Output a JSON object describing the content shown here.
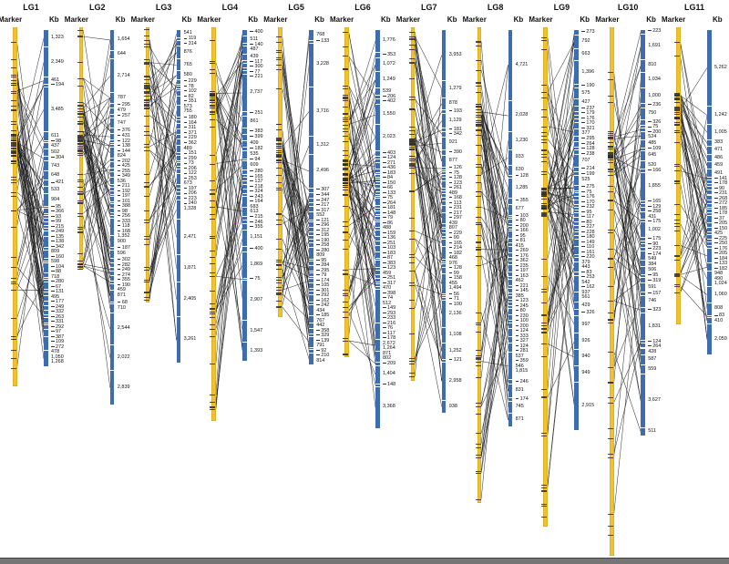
{
  "chart_data": {
    "type": "linkage-map",
    "description": "Genetic linkage map of 11 linkage groups; each group shows a yellow genetic marker bar (Marker) linked by lines to blue physical scaffold segments labeled with sizes in Kb.",
    "labels": {
      "marker": "Marker",
      "kb": "Kb"
    },
    "colors": {
      "marker_bar": "#F2C12E",
      "kb_bar": "#3D6CB1",
      "link_lines": "#1C1C1C",
      "tick": "#2B2B2B",
      "background": "#FFFFFF",
      "bottom_bar": "#757575"
    },
    "groups": [
      {
        "name": "LG1",
        "marker_bar_span": [
          30,
          424
        ],
        "kb_bar_span": [
          33,
          402
        ],
        "kb_values": [
          "1,323",
          "2,349",
          "461",
          "194",
          "3,485",
          "611",
          "98",
          "437",
          "502",
          "304",
          "743",
          "648",
          "421",
          "533",
          "904",
          "95",
          "366",
          "93",
          "99",
          "215",
          "249",
          "135",
          "138",
          "342",
          "809",
          "160",
          "598",
          "104",
          "88",
          "718",
          "280",
          "67",
          "131",
          "495",
          "177",
          "249",
          "332",
          "263",
          "331",
          "292",
          "97",
          "387",
          "109",
          "272",
          "478",
          "1,050",
          "1,268"
        ]
      },
      {
        "name": "LG2",
        "marker_bar_span": [
          30,
          296
        ],
        "kb_bar_span": [
          33,
          444
        ],
        "kb_values": [
          "1,654",
          "644",
          "2,714",
          "787",
          "295",
          "479",
          "257",
          "747",
          "376",
          "431",
          "122",
          "138",
          "144",
          "824",
          "202",
          "425",
          "255",
          "349",
          "536",
          "211",
          "192",
          "197",
          "101",
          "388",
          "98",
          "256",
          "333",
          "118",
          "168",
          "1,352",
          "900",
          "187",
          "596",
          "302",
          "282",
          "249",
          "274",
          "355",
          "190",
          "459",
          "871",
          "68",
          "710",
          "2,544",
          "2,022",
          "2,839"
        ]
      },
      {
        "name": "LG3",
        "marker_bar_span": [
          30,
          332
        ],
        "kb_bar_span": [
          33,
          398
        ],
        "kb_values": [
          "541",
          "119",
          "314",
          "876",
          "765",
          "580",
          "229",
          "78",
          "102",
          "82",
          "351",
          "573",
          "755",
          "180",
          "164",
          "311",
          "371",
          "229",
          "362",
          "489",
          "151",
          "299",
          "73",
          "206",
          "122",
          "253",
          "673",
          "197",
          "206",
          "223",
          "240",
          "1,328",
          "2,471",
          "1,871",
          "2,405",
          "3,261"
        ]
      },
      {
        "name": "LG4",
        "marker_bar_span": [
          30,
          462
        ],
        "kb_bar_span": [
          33,
          396
        ],
        "kb_values": [
          "400",
          "511",
          "140",
          "487",
          "439",
          "117",
          "300",
          "77",
          "221",
          "2,737",
          "251",
          "861",
          "383",
          "399",
          "409",
          "182",
          "535",
          "94",
          "609",
          "280",
          "165",
          "137",
          "218",
          "324",
          "243",
          "164",
          "683",
          "613",
          "215",
          "246",
          "355",
          "1,151",
          "400",
          "1,869",
          "75",
          "2,907",
          "1,547",
          "1,393"
        ]
      },
      {
        "name": "LG5",
        "marker_bar_span": [
          30,
          348
        ],
        "kb_bar_span": [
          33,
          400
        ],
        "kb_values": [
          "768",
          "133",
          "3,228",
          "3,716",
          "1,312",
          "2,496",
          "307",
          "344",
          "247",
          "217",
          "317",
          "552",
          "121",
          "296",
          "312",
          "195",
          "190",
          "258",
          "280",
          "809",
          "95",
          "284",
          "295",
          "79",
          "174",
          "105",
          "301",
          "292",
          "162",
          "242",
          "434",
          "185",
          "767",
          "442",
          "358",
          "329",
          "139",
          "791",
          "92",
          "210",
          "814"
        ]
      },
      {
        "name": "LG6",
        "marker_bar_span": [
          30,
          392
        ],
        "kb_bar_span": [
          33,
          468
        ],
        "kb_values": [
          "1,776",
          "353",
          "1,072",
          "1,249",
          "539",
          "206",
          "402",
          "1,550",
          "2,023",
          "403",
          "124",
          "271",
          "436",
          "183",
          "84",
          "150",
          "66",
          "133",
          "75",
          "264",
          "181",
          "148",
          "79",
          "86",
          "488",
          "159",
          "136",
          "251",
          "103",
          "183",
          "87",
          "383",
          "123",
          "459",
          "251",
          "317",
          "470",
          "398",
          "74",
          "512",
          "149",
          "293",
          "233",
          "216",
          "76",
          "117",
          "178",
          "2,672",
          "1,264",
          "871",
          "802",
          "209",
          "1,404",
          "148",
          "3,368"
        ]
      },
      {
        "name": "LG7",
        "marker_bar_span": [
          30,
          418
        ],
        "kb_bar_span": [
          33,
          452
        ],
        "kb_values": [
          "3,953",
          "1,279",
          "878",
          "193",
          "1,129",
          "181",
          "342",
          "921",
          "390",
          "877",
          "126",
          "75",
          "128",
          "123",
          "261",
          "489",
          "168",
          "113",
          "231",
          "217",
          "297",
          "439",
          "807",
          "229",
          "90",
          "165",
          "214",
          "182",
          "468",
          "976",
          "128",
          "99",
          "158",
          "455",
          "1,494",
          "56",
          "71",
          "100",
          "2,136",
          "1,108",
          "1,252",
          "121",
          "2,958",
          "938"
        ]
      },
      {
        "name": "LG8",
        "marker_bar_span": [
          30,
          552
        ],
        "kb_bar_span": [
          33,
          468
        ],
        "kb_values": [
          "4,721",
          "2,028",
          "1,230",
          "933",
          "630",
          "128",
          "1,285",
          "355",
          "677",
          "103",
          "80",
          "200",
          "166",
          "95",
          "81",
          "415",
          "269",
          "176",
          "362",
          "235",
          "197",
          "163",
          "462",
          "221",
          "145",
          "385",
          "123",
          "245",
          "80",
          "230",
          "100",
          "200",
          "124",
          "333",
          "327",
          "124",
          "281",
          "537",
          "359",
          "546",
          "1,815",
          "246",
          "831",
          "174",
          "745",
          "871"
        ]
      },
      {
        "name": "LG9",
        "marker_bar_span": [
          30,
          578
        ],
        "kb_bar_span": [
          33,
          472
        ],
        "kb_values": [
          "273",
          "792",
          "663",
          "1,396",
          "190",
          "575",
          "427",
          "237",
          "179",
          "176",
          "170",
          "321",
          "377",
          "295",
          "264",
          "128",
          "238",
          "707",
          "214",
          "199",
          "525",
          "275",
          "75",
          "176",
          "170",
          "232",
          "95",
          "117",
          "80",
          "227",
          "228",
          "180",
          "149",
          "110",
          "161",
          "220",
          "379",
          "443",
          "83",
          "253",
          "542",
          "162",
          "937",
          "561",
          "429",
          "326",
          "997",
          "926",
          "940",
          "949",
          "2,915"
        ]
      },
      {
        "name": "LG10",
        "marker_bar_span": [
          30,
          610
        ],
        "kb_bar_span": [
          33,
          478
        ],
        "kb_values": [
          "223",
          "1,691",
          "810",
          "1,034",
          "1,000",
          "236",
          "750",
          "326",
          "75",
          "200",
          "524",
          "485",
          "109",
          "645",
          "520",
          "166",
          "1,855",
          "165",
          "129",
          "258",
          "431",
          "175",
          "1,002",
          "175",
          "90",
          "223",
          "174",
          "549",
          "384",
          "506",
          "95",
          "319",
          "591",
          "157",
          "746",
          "323",
          "1,831",
          "124",
          "264",
          "428",
          "587",
          "559",
          "3,627",
          "511"
        ]
      },
      {
        "name": "LG11",
        "marker_bar_span": [
          30,
          356
        ],
        "kb_bar_span": [
          33,
          388
        ],
        "kb_values": [
          "5,262",
          "1,242",
          "1,005",
          "383",
          "471",
          "486",
          "459",
          "491",
          "141",
          "178",
          "90",
          "231",
          "268",
          "272",
          "185",
          "178",
          "37",
          "205",
          "150",
          "425",
          "225",
          "250",
          "176",
          "205",
          "184",
          "133",
          "182",
          "948",
          "490",
          "1,024",
          "1,060",
          "808",
          "83",
          "410",
          "2,059"
        ]
      }
    ]
  }
}
